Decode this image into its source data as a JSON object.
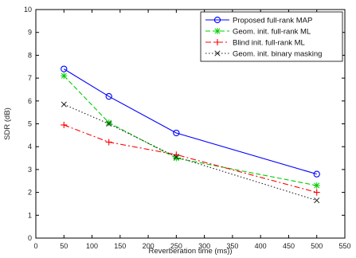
{
  "chart_data": {
    "type": "line",
    "xlabel": "Reverberation time (ms))",
    "ylabel": "SDR (dB)",
    "xlim": [
      0,
      550
    ],
    "ylim": [
      0,
      10
    ],
    "xticks": [
      0,
      50,
      100,
      150,
      200,
      250,
      300,
      350,
      400,
      450,
      500,
      550
    ],
    "yticks": [
      0,
      1,
      2,
      3,
      4,
      5,
      6,
      7,
      8,
      9,
      10
    ],
    "grid": false,
    "legend_position": "top-right",
    "x": [
      50,
      130,
      250,
      500
    ],
    "series": [
      {
        "name": "Proposed full-rank MAP",
        "values": [
          7.4,
          6.2,
          4.6,
          2.8
        ],
        "color": "#0000ff",
        "linestyle": "solid",
        "marker": "circle"
      },
      {
        "name": "Geom. init. full-rank ML",
        "values": [
          7.1,
          5.05,
          3.5,
          2.3
        ],
        "color": "#00cc00",
        "linestyle": "dashed",
        "marker": "star"
      },
      {
        "name": "Blind init. full-rank ML",
        "values": [
          4.95,
          4.2,
          3.65,
          2.0
        ],
        "color": "#ff0000",
        "linestyle": "dashdot",
        "marker": "plus"
      },
      {
        "name": "Geom. init. binary masking",
        "values": [
          5.85,
          5.0,
          3.55,
          1.65
        ],
        "color": "#222222",
        "linestyle": "dotted",
        "marker": "x"
      }
    ]
  }
}
